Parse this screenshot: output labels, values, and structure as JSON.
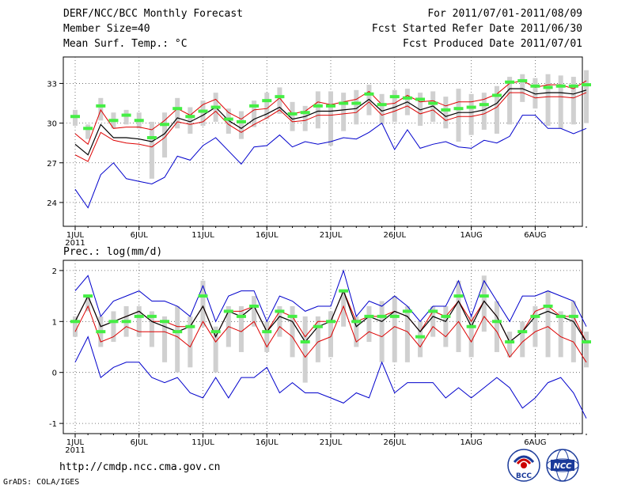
{
  "header": {
    "title": "DERF/NCC/BCC Monthly Forecast",
    "member_size": "Member Size=40",
    "variable": "Mean Surf. Temp.: °C",
    "period": "For 2011/07/01-2011/08/09",
    "fcst_started": "Fcst Started Refer Date 2011/06/30",
    "fcst_produced": "Fcst Produced Date 2011/07/01"
  },
  "footer": {
    "url": "http://cmdp.ncc.cma.gov.cn",
    "credit": "GrADS: COLA/IGES"
  },
  "logos": {
    "bcc": "BCC",
    "ncc": "NCC"
  },
  "colors": {
    "max": "#0000cc",
    "min": "#0000cc",
    "upper": "#dd0000",
    "lower": "#dd0000",
    "mean": "#000000",
    "obs": "#44ee44",
    "range": "#d0d0d0"
  },
  "chart_data": [
    {
      "type": "line",
      "title": "Mean Surf. Temp.: °C",
      "x_start_date": "2011-07-01",
      "x_tick_labels": [
        "1JUL",
        "6JUL",
        "11JUL",
        "16JUL",
        "21JUL",
        "26JUL",
        "1AUG",
        "6AUG"
      ],
      "x_tick_days": [
        1,
        6,
        11,
        16,
        21,
        26,
        32,
        37
      ],
      "year_label": "2011",
      "ylim": [
        22.2,
        35.0
      ],
      "yticks": [
        24,
        27,
        30,
        33
      ],
      "grid": true,
      "series": [
        {
          "name": "max",
          "values": [
            25.0,
            23.6,
            26.1,
            27.0,
            25.8,
            25.6,
            25.4,
            25.9,
            27.5,
            27.2,
            28.3,
            28.9,
            27.9,
            26.9,
            28.2,
            28.3,
            29.1,
            28.2,
            28.6,
            28.4,
            28.6,
            28.9,
            28.8,
            29.3,
            30.0,
            28.0,
            29.5,
            28.1,
            28.4,
            28.6,
            28.2,
            28.1,
            28.7,
            28.5,
            29.0,
            30.6,
            30.6,
            29.6,
            29.6,
            29.2,
            29.6
          ]
        },
        {
          "name": "upper",
          "values": [
            29.2,
            28.4,
            31.0,
            29.6,
            29.7,
            29.7,
            29.5,
            30.2,
            31.1,
            30.6,
            31.4,
            31.8,
            30.8,
            30.3,
            31.0,
            31.1,
            31.9,
            30.7,
            30.9,
            31.6,
            31.4,
            31.6,
            31.8,
            32.4,
            31.4,
            31.5,
            32.1,
            31.6,
            31.7,
            31.3,
            31.6,
            31.6,
            31.8,
            32.2,
            33.0,
            33.2,
            32.7,
            32.9,
            32.9,
            32.6,
            33.2
          ]
        },
        {
          "name": "mean",
          "values": [
            28.4,
            27.6,
            29.9,
            28.9,
            28.9,
            28.8,
            28.6,
            29.2,
            30.4,
            30.1,
            30.6,
            31.2,
            30.2,
            29.6,
            30.3,
            30.7,
            31.2,
            30.3,
            30.5,
            30.9,
            30.9,
            31.0,
            31.1,
            31.8,
            30.9,
            31.2,
            31.6,
            31.0,
            31.3,
            30.5,
            30.8,
            30.8,
            31.0,
            31.5,
            32.6,
            32.6,
            32.2,
            32.3,
            32.3,
            32.2,
            32.5
          ]
        },
        {
          "name": "lower",
          "values": [
            27.6,
            27.1,
            29.3,
            28.7,
            28.5,
            28.4,
            28.2,
            28.9,
            30.1,
            29.9,
            30.1,
            30.9,
            29.9,
            29.3,
            29.9,
            30.4,
            31.0,
            30.1,
            30.2,
            30.6,
            30.6,
            30.7,
            30.8,
            31.6,
            30.6,
            30.9,
            31.3,
            30.7,
            31.0,
            30.2,
            30.5,
            30.5,
            30.7,
            31.2,
            32.3,
            32.3,
            31.9,
            32.0,
            32.0,
            31.9,
            32.3
          ]
        },
        {
          "name": "obs",
          "values": [
            30.5,
            29.6,
            31.3,
            30.2,
            30.6,
            30.2,
            28.9,
            29.9,
            31.1,
            30.5,
            30.9,
            31.2,
            30.3,
            30.1,
            31.3,
            31.7,
            32.0,
            30.7,
            30.8,
            31.3,
            31.3,
            31.5,
            31.5,
            32.2,
            31.4,
            32.0,
            31.9,
            31.8,
            31.5,
            31.0,
            31.1,
            31.2,
            31.4,
            32.1,
            33.1,
            33.2,
            32.8,
            32.7,
            32.8,
            32.8,
            32.9
          ]
        },
        {
          "name": "range_low",
          "values": [
            29.8,
            28.8,
            30.2,
            29.6,
            29.9,
            29.6,
            25.8,
            27.4,
            29.6,
            29.2,
            29.8,
            30.1,
            29.2,
            28.8,
            29.7,
            30.3,
            30.7,
            29.4,
            29.4,
            29.6,
            28.3,
            29.4,
            29.9,
            30.6,
            29.9,
            30.1,
            30.6,
            29.8,
            30.1,
            29.6,
            28.6,
            29.1,
            29.5,
            29.2,
            29.9,
            31.6,
            31.1,
            29.8,
            29.6,
            29.9,
            30.0
          ]
        },
        {
          "name": "range_high",
          "values": [
            31.0,
            29.9,
            31.9,
            30.8,
            31.0,
            30.8,
            30.1,
            30.8,
            31.9,
            31.2,
            31.7,
            32.3,
            31.1,
            30.9,
            31.7,
            32.3,
            32.7,
            31.6,
            31.3,
            32.4,
            32.4,
            32.3,
            32.5,
            32.9,
            32.2,
            32.5,
            32.6,
            32.3,
            32.4,
            32.0,
            32.6,
            32.2,
            32.3,
            32.8,
            33.5,
            33.7,
            33.4,
            33.7,
            33.6,
            33.5,
            34.0
          ]
        }
      ]
    },
    {
      "type": "line",
      "title": "Prec.: log(mm/d)",
      "x_start_date": "2011-07-01",
      "x_tick_labels": [
        "1JUL",
        "6JUL",
        "11JUL",
        "16JUL",
        "21JUL",
        "26JUL",
        "1AUG",
        "6AUG"
      ],
      "x_tick_days": [
        1,
        6,
        11,
        16,
        21,
        26,
        32,
        37
      ],
      "year_label": "2011",
      "ylim": [
        -1.2,
        2.2
      ],
      "yticks": [
        -1,
        0,
        1,
        2
      ],
      "grid": true,
      "series": [
        {
          "name": "max",
          "values": [
            1.6,
            1.9,
            1.1,
            1.4,
            1.5,
            1.6,
            1.4,
            1.4,
            1.3,
            1.1,
            1.7,
            1.0,
            1.5,
            1.6,
            1.6,
            1.0,
            1.5,
            1.4,
            1.2,
            1.3,
            1.3,
            2.0,
            1.1,
            1.4,
            1.3,
            1.5,
            1.3,
            1.0,
            1.3,
            1.3,
            1.8,
            1.1,
            1.8,
            1.4,
            1.0,
            1.5,
            1.5,
            1.6,
            1.5,
            1.4,
            0.9
          ]
        },
        {
          "name": "upper",
          "values": [
            1.0,
            1.5,
            0.9,
            1.0,
            1.1,
            1.2,
            1.0,
            1.0,
            0.9,
            0.9,
            1.3,
            0.7,
            1.2,
            1.2,
            1.3,
            0.8,
            1.2,
            1.1,
            0.7,
            1.0,
            1.0,
            1.6,
            1.0,
            1.1,
            1.1,
            1.2,
            1.1,
            0.8,
            1.2,
            1.1,
            1.4,
            1.0,
            1.4,
            1.1,
            0.6,
            0.8,
            1.2,
            1.3,
            1.1,
            1.1,
            0.6
          ]
        },
        {
          "name": "mean",
          "values": [
            1.0,
            1.5,
            0.9,
            1.0,
            1.1,
            1.2,
            1.0,
            0.9,
            0.8,
            0.9,
            1.3,
            0.7,
            1.2,
            1.1,
            1.3,
            0.8,
            1.1,
            1.0,
            0.6,
            0.9,
            1.0,
            1.6,
            0.9,
            1.1,
            1.0,
            1.2,
            1.1,
            0.8,
            1.1,
            1.0,
            1.4,
            0.9,
            1.4,
            1.1,
            0.6,
            0.8,
            1.1,
            1.2,
            1.1,
            1.0,
            0.6
          ]
        },
        {
          "name": "lower",
          "values": [
            0.8,
            1.3,
            0.6,
            0.7,
            0.9,
            0.8,
            0.8,
            0.8,
            0.7,
            0.5,
            1.0,
            0.6,
            0.9,
            0.8,
            1.0,
            0.5,
            0.9,
            0.7,
            0.3,
            0.6,
            0.7,
            1.3,
            0.6,
            0.8,
            0.7,
            0.9,
            0.8,
            0.5,
            0.9,
            0.7,
            1.0,
            0.6,
            1.1,
            0.8,
            0.3,
            0.6,
            0.8,
            0.9,
            0.7,
            0.6,
            0.2
          ]
        },
        {
          "name": "min",
          "values": [
            0.2,
            0.7,
            -0.1,
            0.1,
            0.2,
            0.2,
            -0.1,
            -0.2,
            -0.1,
            -0.4,
            -0.5,
            -0.1,
            -0.5,
            -0.1,
            -0.1,
            0.1,
            -0.4,
            -0.2,
            -0.4,
            -0.4,
            -0.5,
            -0.6,
            -0.4,
            -0.5,
            0.2,
            -0.4,
            -0.2,
            -0.2,
            -0.2,
            -0.5,
            -0.3,
            -0.5,
            -0.3,
            -0.1,
            -0.3,
            -0.7,
            -0.5,
            -0.2,
            -0.1,
            -0.4,
            -0.9
          ]
        },
        {
          "name": "obs",
          "values": [
            1.0,
            1.5,
            0.8,
            1.0,
            1.0,
            1.1,
            1.1,
            1.0,
            0.8,
            0.9,
            1.5,
            0.8,
            1.2,
            1.1,
            1.3,
            0.8,
            1.2,
            1.1,
            0.6,
            0.9,
            1.0,
            1.6,
            1.0,
            1.1,
            1.1,
            1.1,
            1.2,
            0.7,
            1.2,
            1.1,
            1.5,
            0.9,
            1.5,
            1.0,
            0.6,
            0.8,
            1.1,
            1.3,
            1.1,
            1.1,
            0.6
          ]
        },
        {
          "name": "range_low",
          "values": [
            0.7,
            1.2,
            0.5,
            0.6,
            0.7,
            0.7,
            0.5,
            0.2,
            0.0,
            0.1,
            0.9,
            0.0,
            0.5,
            0.4,
            0.9,
            0.4,
            0.7,
            0.3,
            -0.2,
            0.2,
            0.3,
            0.9,
            0.5,
            0.6,
            0.2,
            0.2,
            0.2,
            0.3,
            0.7,
            0.5,
            0.4,
            0.3,
            0.8,
            0.4,
            0.3,
            0.3,
            0.5,
            0.3,
            0.3,
            0.2,
            0.1
          ]
        },
        {
          "name": "range_high",
          "values": [
            1.1,
            1.5,
            1.1,
            1.2,
            1.3,
            1.3,
            1.2,
            1.1,
            1.3,
            1.1,
            1.8,
            0.9,
            1.3,
            1.3,
            1.5,
            1.0,
            1.3,
            1.3,
            1.1,
            1.1,
            1.2,
            1.6,
            1.1,
            1.3,
            1.4,
            1.5,
            1.3,
            1.0,
            1.3,
            1.3,
            1.8,
            1.1,
            1.9,
            1.4,
            0.8,
            1.0,
            1.3,
            1.6,
            1.2,
            1.4,
            0.8
          ]
        }
      ]
    }
  ]
}
